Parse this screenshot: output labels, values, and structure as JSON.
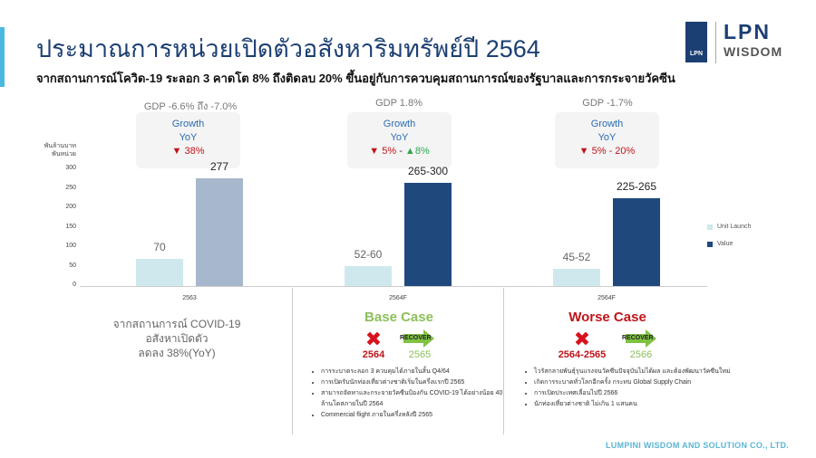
{
  "header": {
    "title": "ประมาณการหน่วยเปิดตัวอสังหาริมทรัพย์ปี 2564",
    "subtitle": "จากสถานการณ์โควิด-19 ระลอก 3 คาดโต 8% ถึงติดลบ 20% ขึ้นอยู่กับการควบคุมสถานการณ์ของรัฐบาลและการกระจายวัคซีน"
  },
  "logo": {
    "mark": "LPN",
    "line1": "LPN",
    "line2": "WISDOM"
  },
  "chart_data": {
    "type": "bar",
    "categories": [
      "2563",
      "2564F",
      "2564F"
    ],
    "yunit": [
      "พันล้านบาท",
      "พันหน่วย"
    ],
    "ylim": [
      0,
      300
    ],
    "yticks": [
      0,
      50,
      100,
      150,
      200,
      250,
      300
    ],
    "series": [
      {
        "name": "Unit Launch",
        "color": "#cfe8ee",
        "values": [
          70,
          52,
          45
        ],
        "labels": [
          "70",
          "52-60",
          "45-52"
        ]
      },
      {
        "name": "Value",
        "color": "#1f497d",
        "values": [
          277,
          265,
          225
        ],
        "labels": [
          "277",
          "265-300",
          "225-265"
        ]
      }
    ],
    "first_value_color": "#a7b8cc",
    "legend": "right"
  },
  "groups": [
    {
      "gdp": "GDP -6.6% ถึง -7.0%",
      "growth": "Growth",
      "yoy": "YoY",
      "down": "38%",
      "up": ""
    },
    {
      "gdp": "GDP 1.8%",
      "growth": "Growth",
      "yoy": "YoY",
      "down": "5%",
      "up": "8%"
    },
    {
      "gdp": "GDP -1.7%",
      "growth": "Growth",
      "yoy": "YoY",
      "down": "5% - 20%",
      "up": ""
    }
  ],
  "note2563": [
    "จากสถานการณ์ COVID-19",
    "อสังหาเปิดตัว",
    "ลดลง 38%(YoY)"
  ],
  "base": {
    "title": "Base Case",
    "color": "#8cbf5a",
    "bad_year": "2564",
    "recover_year": "2565",
    "recover": "RECOVER",
    "bullets": [
      "การระบาดระลอก 3 ควบคุมได้ภายในสิ้น Q4/64",
      "การเปิดรับนักท่องเที่ยวต่างชาติเริ่มในครึ่งแรกปี 2565",
      "สามารถจัดหาและกระจายวัคซีนป้องกัน COVID-19 ได้อย่างน้อย 40 ล้านโดสภายในปี 2564",
      "Commercial flight ภายในครึ่งหลังปี 2565"
    ]
  },
  "worse": {
    "title": "Worse Case",
    "color": "#c0141a",
    "bad_year": "2564-2565",
    "recover_year": "2566",
    "recover": "RECOVER",
    "bullets": [
      "ไวรัสกลายพันธุ์รุนแรงจนวัคซีนปัจจุบันไม่ได้ผล และต้องพัฒนาวัคซีนใหม่",
      "เกิดการระบาดทั่วโลกอีกครั้ง กระทบ Global Supply Chain",
      "การเปิดประเทศเลื่อนไปปี 2566",
      "นักท่องเที่ยวต่างชาติ ไม่เกิน 1 แสนคน"
    ]
  },
  "footer": "LUMPINI WISDOM AND SOLUTION CO., LTD."
}
